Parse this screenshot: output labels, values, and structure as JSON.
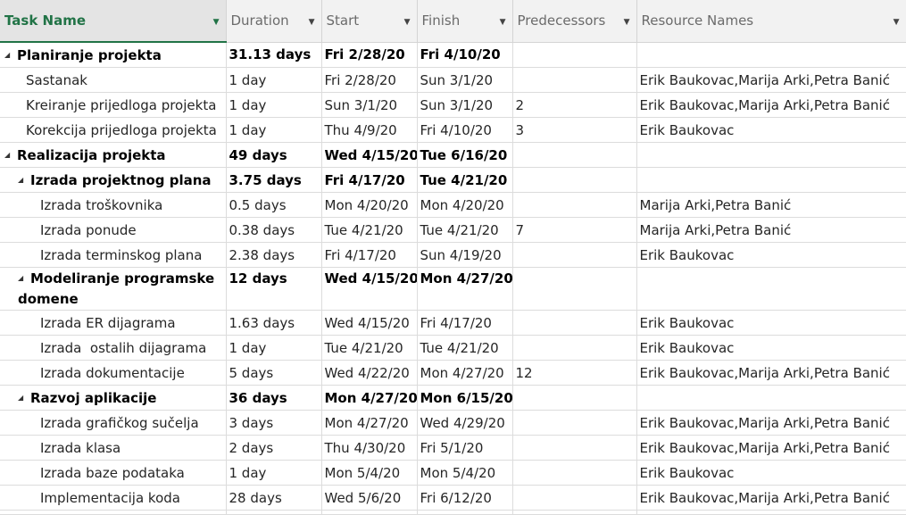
{
  "columns": [
    "Task Name",
    "Duration",
    "Start",
    "Finish",
    "Predecessors",
    "Resource Names"
  ],
  "rows": [
    {
      "name": "Planiranje projekta",
      "duration": "31.13 days",
      "start": "Fri 2/28/20",
      "finish": "Fri 4/10/20",
      "pred": "",
      "res": ""
    },
    {
      "name": "Sastanak",
      "duration": "1 day",
      "start": "Fri 2/28/20",
      "finish": "Sun 3/1/20",
      "pred": "",
      "res": "Erik Baukovac,Marija Arki,Petra Banić"
    },
    {
      "name": "Kreiranje prijedloga projekta",
      "duration": "1 day",
      "start": "Sun 3/1/20",
      "finish": "Sun 3/1/20",
      "pred": "2",
      "res": "Erik Baukovac,Marija Arki,Petra Banić"
    },
    {
      "name": "Korekcija prijedloga projekta",
      "duration": "1 day",
      "start": "Thu 4/9/20",
      "finish": "Fri 4/10/20",
      "pred": "3",
      "res": "Erik Baukovac"
    },
    {
      "name": "Realizacija projekta",
      "duration": "49 days",
      "start": "Wed 4/15/20",
      "finish": "Tue 6/16/20",
      "pred": "",
      "res": ""
    },
    {
      "name": "Izrada projektnog plana",
      "duration": "3.75 days",
      "start": "Fri 4/17/20",
      "finish": "Tue 4/21/20",
      "pred": "",
      "res": ""
    },
    {
      "name": "Izrada troškovnika",
      "duration": "0.5 days",
      "start": "Mon 4/20/20",
      "finish": "Mon 4/20/20",
      "pred": "",
      "res": "Marija Arki,Petra Banić"
    },
    {
      "name": "Izrada ponude",
      "duration": "0.38 days",
      "start": "Tue 4/21/20",
      "finish": "Tue 4/21/20",
      "pred": "7",
      "res": "Marija Arki,Petra Banić"
    },
    {
      "name": "Izrada terminskog plana",
      "duration": "2.38 days",
      "start": "Fri 4/17/20",
      "finish": "Sun 4/19/20",
      "pred": "",
      "res": "Erik Baukovac"
    },
    {
      "name": "Modeliranje programske domene",
      "duration": "12 days",
      "start": "Wed 4/15/20",
      "finish": "Mon 4/27/20",
      "pred": "",
      "res": ""
    },
    {
      "name": "Izrada ER dijagrama",
      "duration": "1.63 days",
      "start": "Wed 4/15/20",
      "finish": "Fri 4/17/20",
      "pred": "",
      "res": "Erik Baukovac"
    },
    {
      "name": "Izrada  ostalih dijagrama",
      "duration": "1 day",
      "start": "Tue 4/21/20",
      "finish": "Tue 4/21/20",
      "pred": "",
      "res": "Erik Baukovac"
    },
    {
      "name": "Izrada dokumentacije",
      "duration": "5 days",
      "start": "Wed 4/22/20",
      "finish": "Mon 4/27/20",
      "pred": "12",
      "res": "Erik Baukovac,Marija Arki,Petra Banić"
    },
    {
      "name": "Razvoj aplikacije",
      "duration": "36 days",
      "start": "Mon 4/27/20",
      "finish": "Mon 6/15/20",
      "pred": "",
      "res": ""
    },
    {
      "name": "Izrada grafičkog sučelja",
      "duration": "3 days",
      "start": "Mon 4/27/20",
      "finish": "Wed 4/29/20",
      "pred": "",
      "res": "Erik Baukovac,Marija Arki,Petra Banić"
    },
    {
      "name": "Izrada klasa",
      "duration": "2 days",
      "start": "Thu 4/30/20",
      "finish": "Fri 5/1/20",
      "pred": "",
      "res": "Erik Baukovac,Marija Arki,Petra Banić"
    },
    {
      "name": "Izrada baze podataka",
      "duration": "1 day",
      "start": "Mon 5/4/20",
      "finish": "Mon 5/4/20",
      "pred": "",
      "res": "Erik Baukovac"
    },
    {
      "name": "Implementacija koda",
      "duration": "28 days",
      "start": "Wed 5/6/20",
      "finish": "Fri 6/12/20",
      "pred": "",
      "res": "Erik Baukovac,Marija Arki,Petra Banić"
    }
  ],
  "icons": {
    "collapse": "collapse-triangle-icon",
    "dropdown": "dropdown-arrow-icon"
  }
}
